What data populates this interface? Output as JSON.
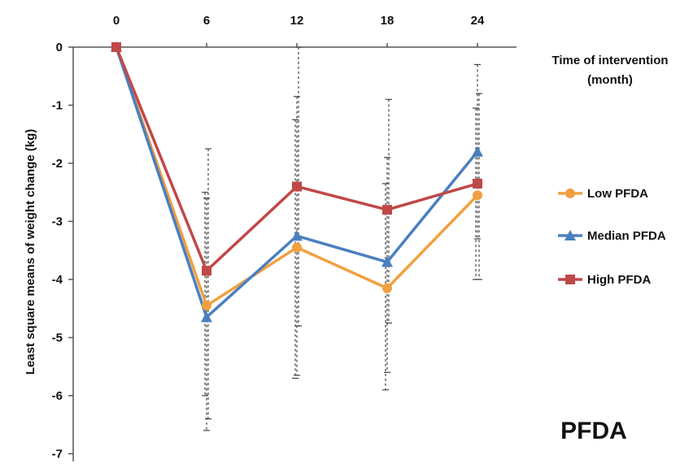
{
  "chart_data": {
    "type": "line",
    "title": "PFDA",
    "xlabel": "Time of intervention (month)",
    "xlabel_lines": [
      "Time of intervention",
      "(month)"
    ],
    "ylabel": "Least square means of weight change (kg)",
    "x": [
      0,
      6,
      12,
      18,
      24
    ],
    "x_tick_labels": [
      "0",
      "6",
      "12",
      "18",
      "24"
    ],
    "y_tick_labels": [
      "0",
      "-1",
      "-2",
      "-3",
      "-4",
      "-5",
      "-6",
      "-7"
    ],
    "ylim": [
      -7,
      0
    ],
    "x_axis_position": "top",
    "grid": false,
    "legend_position": "right",
    "series": [
      {
        "name": "Low PFDA",
        "color": "#f0a040",
        "marker": "circle",
        "values": [
          0,
          -4.45,
          -3.45,
          -4.15,
          -2.55
        ],
        "error_low": [
          0,
          -6.0,
          -5.7,
          -5.9,
          -4.0
        ],
        "error_high": [
          0,
          -2.5,
          -1.25,
          -2.35,
          -1.05
        ]
      },
      {
        "name": "Median PFDA",
        "color": "#4a7fc0",
        "marker": "triangle",
        "values": [
          0,
          -4.65,
          -3.25,
          -3.7,
          -1.8
        ],
        "error_low": [
          0,
          -6.6,
          -5.65,
          -5.6,
          -3.3
        ],
        "error_high": [
          0,
          -2.6,
          -0.85,
          -1.9,
          -0.3
        ]
      },
      {
        "name": "High PFDA",
        "color": "#c04848",
        "marker": "square",
        "values": [
          0,
          -3.85,
          -2.4,
          -2.8,
          -2.35
        ],
        "error_low": [
          0,
          -6.4,
          -4.8,
          -4.75,
          -4.0
        ],
        "error_high": [
          0,
          -1.75,
          0,
          -0.9,
          -0.8
        ]
      }
    ]
  }
}
